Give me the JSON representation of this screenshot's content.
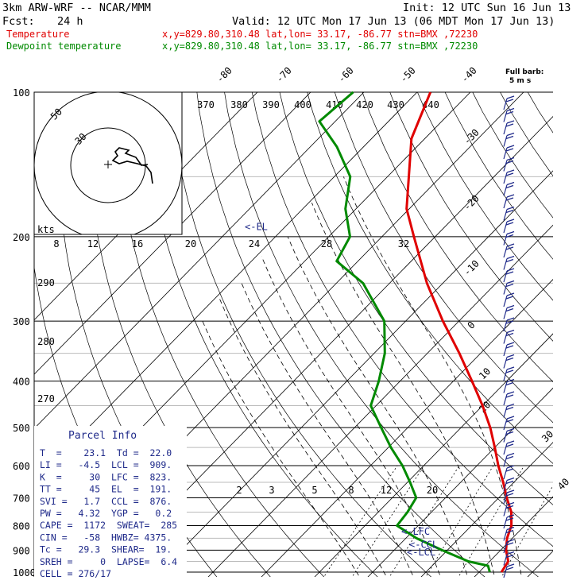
{
  "header": {
    "model": "3km ARW-WRF -- NCAR/MMM",
    "init": "Init: 12 UTC Sun 16 Jun 13",
    "fcst_label": "Fcst:",
    "fcst_value": "24 h",
    "valid": "Valid: 12 UTC Mon 17 Jun 13 (06 MDT Mon 17 Jun 13)"
  },
  "legend": {
    "temperature": {
      "label": "Temperature",
      "info": "x,y=829.80,310.48   lat,lon= 33.17, -86.77   stn=BMX ,72230",
      "color": "#e00000"
    },
    "dewpoint": {
      "label": "Dewpoint temperature",
      "info": "x,y=829.80,310.48   lat,lon= 33.17, -86.77   stn=BMX ,72230",
      "color": "#008a00"
    }
  },
  "wind_key": {
    "line1": "Full barb:",
    "line2": "5 m s"
  },
  "hodograph": {
    "unit_label": "kts",
    "ring_labels": [
      "30",
      "50"
    ]
  },
  "chart_data": {
    "type": "skew-t",
    "pressure_levels": [
      "100",
      "200",
      "300",
      "400",
      "500",
      "600",
      "700",
      "800",
      "900",
      "1000"
    ],
    "isotherm_labels": [
      "-80",
      "-70",
      "-60",
      "-50",
      "-40",
      "-30",
      "-20",
      "-10",
      "0",
      "10",
      "20",
      "30",
      "40"
    ],
    "theta_labels": [
      "370",
      "380",
      "390",
      "400",
      "410",
      "420",
      "430",
      "440"
    ],
    "theta_low_labels": [
      "290",
      "280",
      "270"
    ],
    "lower_axis_labels": [
      "8",
      "12",
      "16",
      "20",
      "24",
      "28",
      "32"
    ],
    "mixing_ratio_labels": [
      "2",
      "3",
      "5",
      "8",
      "12",
      "20"
    ],
    "temperature_profile": [
      [
        1000,
        24.2
      ],
      [
        950,
        23.5
      ],
      [
        900,
        21.0
      ],
      [
        850,
        19.0
      ],
      [
        800,
        17.5
      ],
      [
        750,
        15.0
      ],
      [
        700,
        11.5
      ],
      [
        650,
        8.0
      ],
      [
        600,
        4.0
      ],
      [
        550,
        0.0
      ],
      [
        500,
        -4.5
      ],
      [
        450,
        -10.0
      ],
      [
        400,
        -16.5
      ],
      [
        350,
        -24.0
      ],
      [
        300,
        -33.0
      ],
      [
        250,
        -43.0
      ],
      [
        200,
        -54.0
      ],
      [
        175,
        -60.5
      ],
      [
        150,
        -66.0
      ],
      [
        125,
        -72.5
      ],
      [
        100,
        -77.5
      ]
    ],
    "dewpoint_profile": [
      [
        1000,
        22.0
      ],
      [
        970,
        20.5
      ],
      [
        950,
        16.0
      ],
      [
        900,
        9.0
      ],
      [
        850,
        2.0
      ],
      [
        800,
        -4.0
      ],
      [
        750,
        -4.5
      ],
      [
        700,
        -5.5
      ],
      [
        650,
        -9.5
      ],
      [
        600,
        -14.0
      ],
      [
        550,
        -19.5
      ],
      [
        500,
        -25.0
      ],
      [
        450,
        -31.0
      ],
      [
        400,
        -34.0
      ],
      [
        350,
        -38.0
      ],
      [
        300,
        -44.0
      ],
      [
        250,
        -55.0
      ],
      [
        225,
        -64.0
      ],
      [
        200,
        -66.0
      ],
      [
        175,
        -72.0
      ],
      [
        150,
        -77.0
      ],
      [
        130,
        -85.0
      ],
      [
        115,
        -93.0
      ],
      [
        100,
        -92.0
      ]
    ],
    "level_markers": [
      {
        "label": "<-EL",
        "p": 191
      },
      {
        "label": "<-LFC",
        "p": 823
      },
      {
        "label": "<-CCL",
        "p": 876
      },
      {
        "label": "<-LCL",
        "p": 909
      }
    ],
    "wind_barbs": "right-edge column (blue), 100-1000 hPa"
  },
  "parcel_info": {
    "title": "Parcel Info",
    "rows": [
      "T  =    23.1  Td =  22.0",
      "LI =   -4.5  LCL =  909.",
      "K  =     30  LFC =  823.",
      "TT =     45  EL  =  191.",
      "SVI =   1.7  CCL =  876.",
      "PW =   4.32  YGP =   0.2",
      "CAPE =  1172  SWEAT=  285",
      "CIN =   -58  HWBZ= 4375.",
      "Tc =   29.3  SHEAR=  19.",
      "SREH =     0  LAPSE=  6.4",
      "CELL = 276/17"
    ]
  }
}
